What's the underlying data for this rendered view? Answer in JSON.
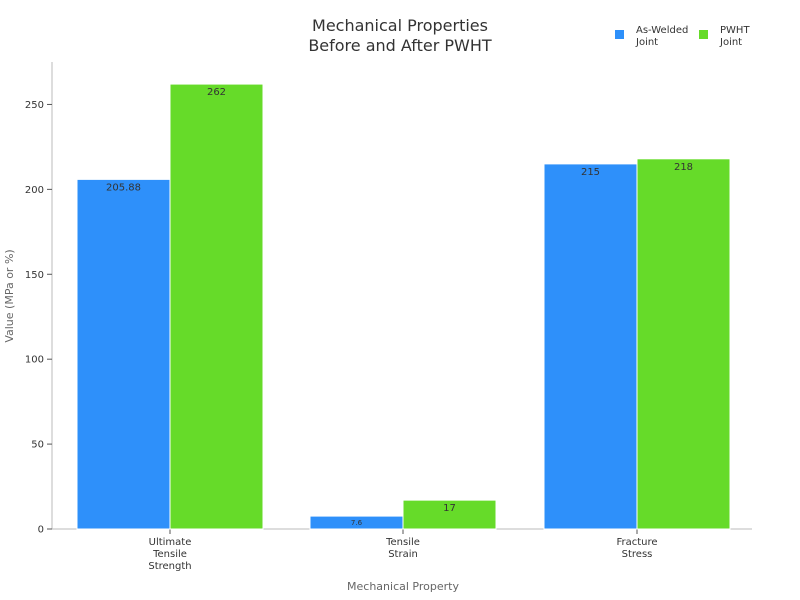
{
  "chart_data": {
    "type": "bar",
    "title": [
      "Mechanical Properties",
      "Before and After PWHT"
    ],
    "xlabel": "Mechanical Property",
    "ylabel": "Value (MPa or %)",
    "categories": [
      [
        "Ultimate",
        "Tensile",
        "Strength"
      ],
      [
        "Tensile",
        "Strain"
      ],
      [
        "Fracture",
        "Stress"
      ]
    ],
    "series": [
      {
        "name": [
          "As-Welded",
          "Joint"
        ],
        "color": "#2e90fa",
        "values": [
          205.88,
          7.6,
          215
        ],
        "labels": [
          "205.88",
          "7.6",
          "215"
        ]
      },
      {
        "name": [
          "PWHT",
          "Joint"
        ],
        "color": "#66db29",
        "values": [
          262,
          17,
          218
        ],
        "labels": [
          "262",
          "17",
          "218"
        ]
      }
    ],
    "ylim": [
      0,
      275
    ],
    "yticks": [
      0,
      50,
      100,
      150,
      200,
      250
    ],
    "grid": false,
    "legend": "top-right"
  }
}
